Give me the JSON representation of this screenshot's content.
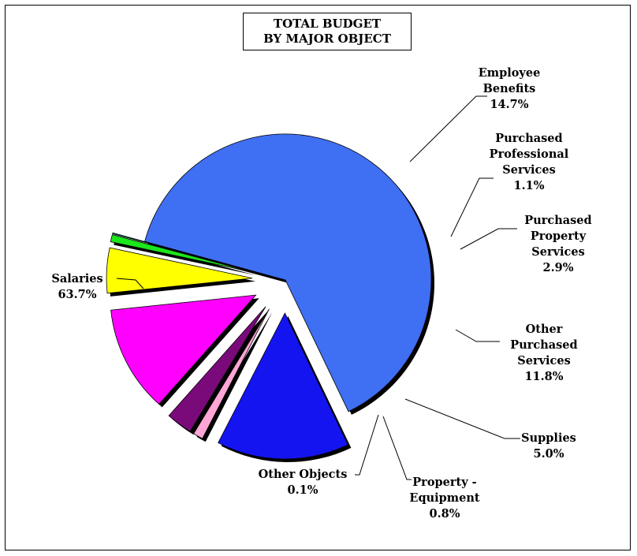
{
  "chart_data": {
    "type": "pie",
    "title_lines": [
      "TOTAL BUDGET",
      "BY MAJOR OBJECT"
    ],
    "slices": [
      {
        "name": "Salaries",
        "value": 63.7,
        "label": [
          "Salaries",
          "63.7%"
        ],
        "color": "#3F6FF2"
      },
      {
        "name": "Employee Benefits",
        "value": 14.7,
        "label": [
          "Employee",
          "Benefits",
          "14.7%"
        ],
        "color": "#1414F0"
      },
      {
        "name": "Purchased Professional Services",
        "value": 1.1,
        "label": [
          "Purchased",
          "Professional",
          "Services",
          "1.1%"
        ],
        "color": "#FFA6D6"
      },
      {
        "name": "Purchased Property Services",
        "value": 2.9,
        "label": [
          "Purchased",
          "Property",
          "Services",
          "2.9%"
        ],
        "color": "#7A0A7A"
      },
      {
        "name": "Other Purchased Services",
        "value": 11.8,
        "label": [
          "Other",
          "Purchased",
          "Services",
          "11.8%"
        ],
        "color": "#FF00FF"
      },
      {
        "name": "Supplies",
        "value": 5.0,
        "label": [
          "Supplies",
          "5.0%"
        ],
        "color": "#FFFF00"
      },
      {
        "name": "Property - Equipment",
        "value": 0.8,
        "label": [
          "Property -",
          "Equipment",
          "0.8%"
        ],
        "color": "#1CE61C"
      },
      {
        "name": "Other Objects",
        "value": 0.1,
        "label": [
          "Other Objects",
          "0.1%"
        ],
        "color": "#00A0A0"
      }
    ]
  }
}
